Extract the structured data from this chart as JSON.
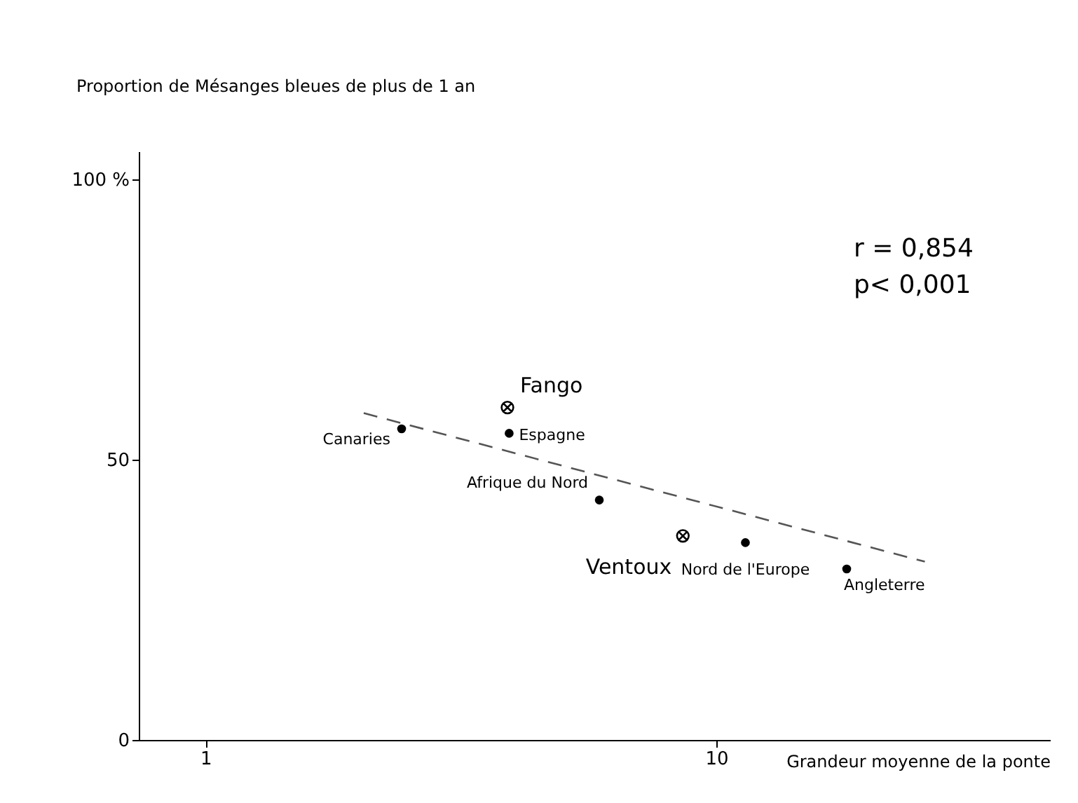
{
  "chart_data": {
    "type": "scatter",
    "ylabel": "Proportion de Mésanges bleues de plus de 1 an",
    "xlabel": "Grandeur moyenne de la ponte",
    "log": "x",
    "xlim": [
      0.74,
      45
    ],
    "xticks": [
      1,
      10
    ],
    "ylim": [
      0,
      105
    ],
    "yticks": [
      0,
      50,
      {
        "value": 100,
        "label": "100 %"
      }
    ],
    "grid": false,
    "series": [
      {
        "marker": "circle",
        "color": "#000000",
        "x": [
          2.42,
          3.93,
          5.9,
          11.4,
          18.0
        ],
        "values": [
          55.5,
          54.7,
          42.8,
          35.2,
          30.5
        ]
      },
      {
        "marker": "cross",
        "color": "#000000",
        "x": [
          3.9,
          8.6
        ],
        "values": [
          59.3,
          36.4
        ]
      },
      {
        "type": "line",
        "line_style": "dashed",
        "color": "#555555",
        "x": [
          2.04,
          25.6
        ],
        "values": [
          58.3,
          31.8
        ]
      }
    ],
    "annotations": [
      {
        "text": "Canaries",
        "x": 2.42,
        "y": 55.5
      },
      {
        "text": "Espagne",
        "x": 3.93,
        "y": 54.7
      },
      {
        "text": "Afrique du Nord",
        "x": 5.9,
        "y": 42.8
      },
      {
        "text": "Nord de l'Europe",
        "x": 11.4,
        "y": 35.2
      },
      {
        "text": "Angleterre",
        "x": 18.0,
        "y": 30.5
      },
      {
        "text": "Fango",
        "x": 3.9,
        "y": 59.3
      },
      {
        "text": "Ventoux",
        "x": 8.6,
        "y": 36.4
      },
      "r = 0,854",
      "p< 0,001"
    ]
  }
}
